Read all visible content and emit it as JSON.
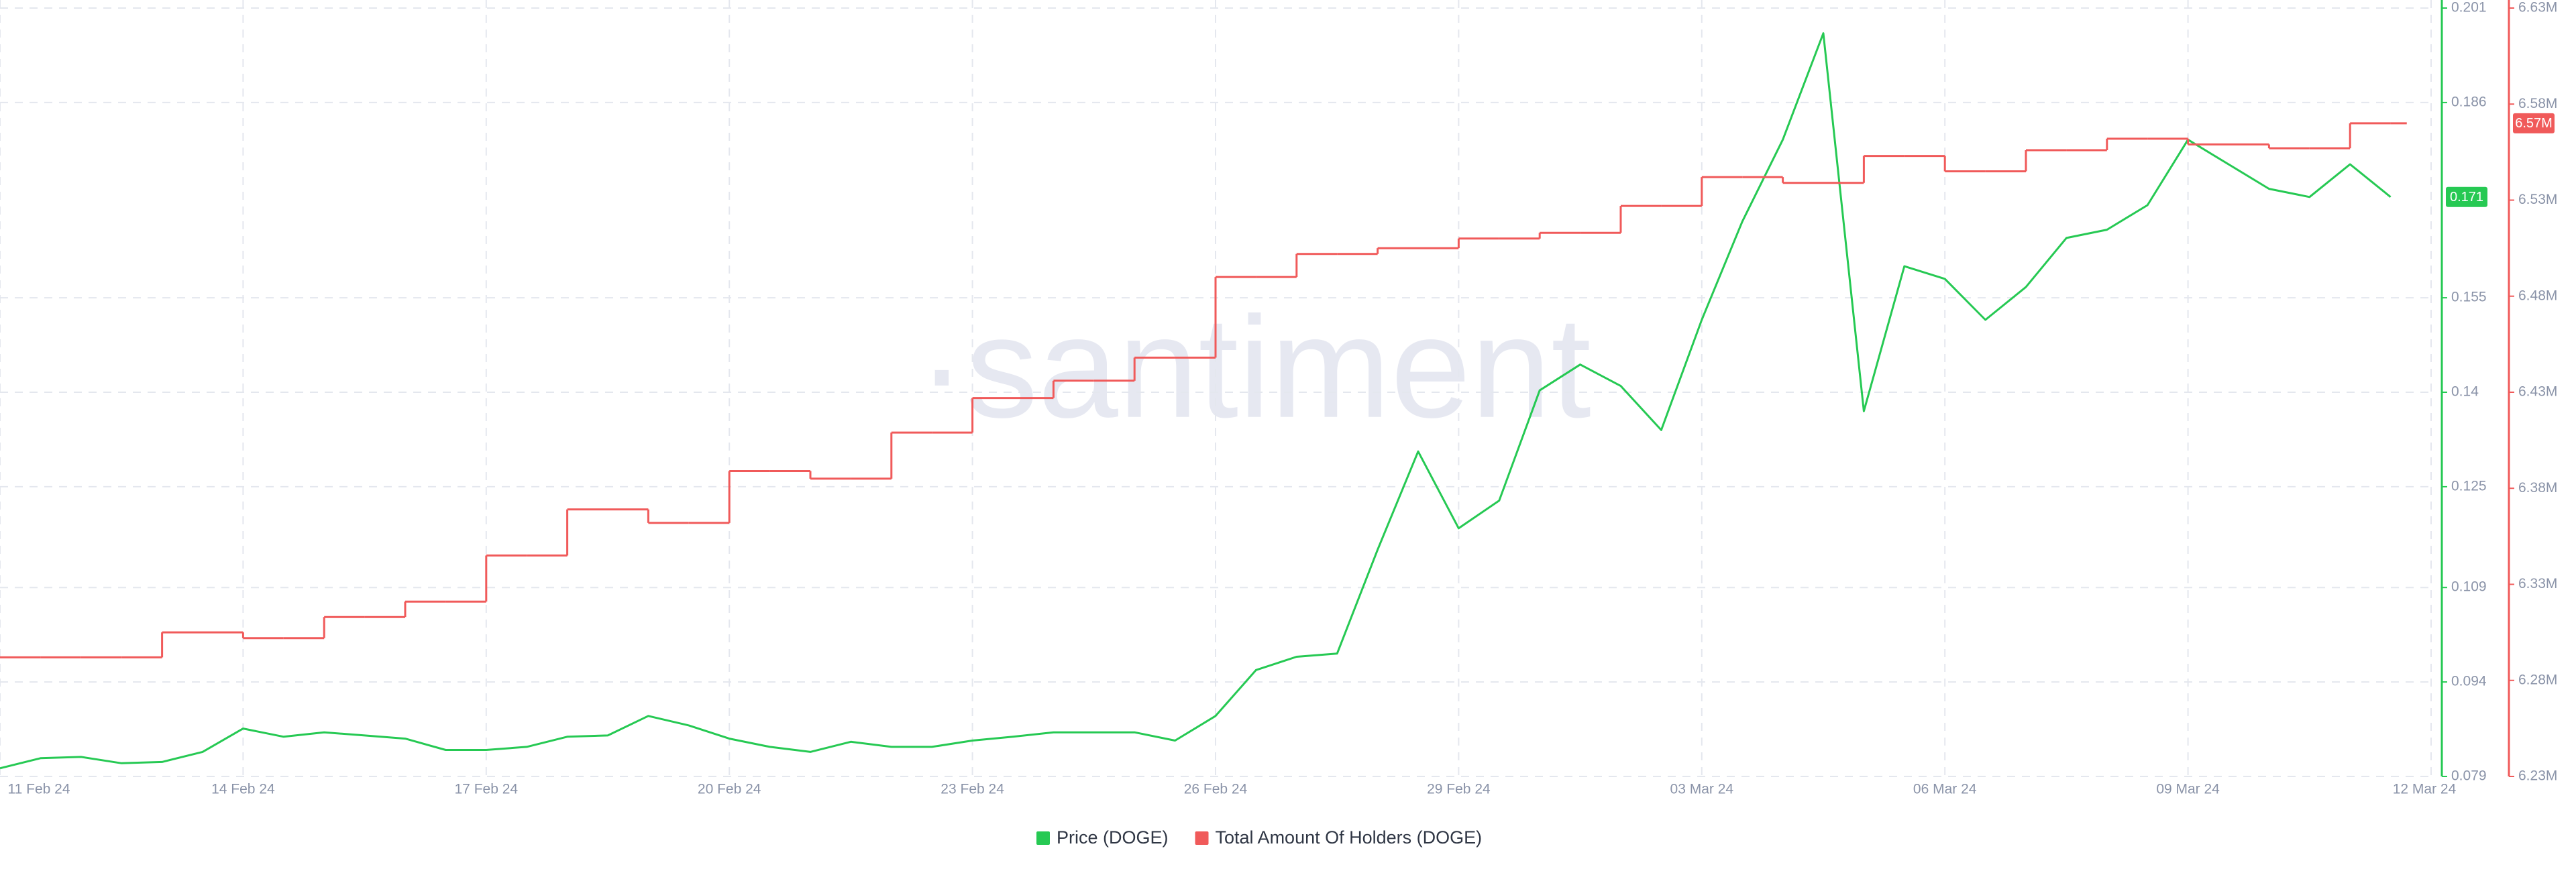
{
  "chart_data": {
    "type": "line",
    "watermark": "·santiment",
    "categories": [
      "11 Feb 24",
      null,
      null,
      null,
      null,
      null,
      "14 Feb 24",
      null,
      null,
      null,
      null,
      null,
      "17 Feb 24",
      null,
      null,
      null,
      null,
      null,
      "20 Feb 24",
      null,
      null,
      null,
      null,
      null,
      "23 Feb 24",
      null,
      null,
      null,
      null,
      null,
      "26 Feb 24",
      null,
      null,
      null,
      null,
      null,
      "29 Feb 24",
      null,
      null,
      null,
      null,
      null,
      "03 Mar 24",
      null,
      null,
      null,
      null,
      null,
      "06 Mar 24",
      null,
      null,
      null,
      null,
      null,
      "09 Mar 24",
      null,
      null,
      null,
      null,
      null,
      "12 Mar 24"
    ],
    "series": [
      {
        "name": "Price (DOGE)",
        "color": "#26c953",
        "axis": "y",
        "values": [
          0.0803,
          0.0819,
          0.0821,
          0.0811,
          0.0813,
          0.0829,
          0.0866,
          0.0853,
          0.086,
          0.0855,
          0.085,
          0.0832,
          0.0832,
          0.0837,
          0.0853,
          0.0855,
          0.0886,
          0.0871,
          0.085,
          0.0837,
          0.0829,
          0.0845,
          0.0837,
          0.0837,
          0.0847,
          0.0853,
          0.086,
          0.086,
          0.086,
          0.0847,
          0.0886,
          0.0959,
          0.098,
          0.0985,
          0.115,
          0.1306,
          0.1184,
          0.1228,
          0.1403,
          0.1444,
          0.141,
          0.134,
          0.1515,
          0.1671,
          0.1801,
          0.197,
          0.137,
          0.16,
          0.158,
          0.1515,
          0.1567,
          0.1645,
          0.1658,
          0.1697,
          0.1801,
          0.1762,
          0.1723,
          0.171,
          0.1762,
          0.171,
          null
        ]
      },
      {
        "name": "Total Amount Of Holders (DOGE)",
        "color": "#f05a5a",
        "axis": "y2",
        "end_label": "6.57M",
        "values": [
          6292000,
          6292000,
          6292000,
          6292000,
          6305000,
          6305000,
          6302000,
          6302000,
          6313000,
          6313000,
          6321000,
          6321000,
          6345000,
          6345000,
          6369000,
          6369000,
          6362000,
          6362000,
          6389000,
          6389000,
          6385000,
          6385000,
          6409000,
          6409000,
          6427000,
          6427000,
          6436000,
          6436000,
          6448000,
          6448000,
          6490000,
          6490000,
          6502000,
          6502000,
          6505000,
          6505000,
          6510000,
          6510000,
          6513000,
          6513000,
          6527000,
          6527000,
          6542000,
          6542000,
          6539000,
          6539000,
          6553000,
          6553000,
          6545000,
          6545000,
          6556000,
          6556000,
          6562000,
          6562000,
          6559000,
          6559000,
          6557000,
          6557000,
          6570000,
          6570000,
          null
        ]
      }
    ],
    "ylim": [
      0.079,
      0.201
    ],
    "yticks": [
      0.079,
      0.094,
      0.109,
      0.125,
      0.14,
      0.155,
      0.186,
      0.201
    ],
    "y2lim": [
      6230000,
      6630000
    ],
    "y2ticks": [
      {
        "value": 6230000,
        "label": "6.23M"
      },
      {
        "value": 6280000,
        "label": "6.28M"
      },
      {
        "value": 6330000,
        "label": "6.33M"
      },
      {
        "value": 6380000,
        "label": "6.38M"
      },
      {
        "value": 6430000,
        "label": "6.43M"
      },
      {
        "value": 6480000,
        "label": "6.48M"
      },
      {
        "value": 6530000,
        "label": "6.53M"
      },
      {
        "value": 6580000,
        "label": "6.58M"
      },
      {
        "value": 6630000,
        "label": "6.63M"
      }
    ],
    "grid": true,
    "legend": "bottom"
  }
}
